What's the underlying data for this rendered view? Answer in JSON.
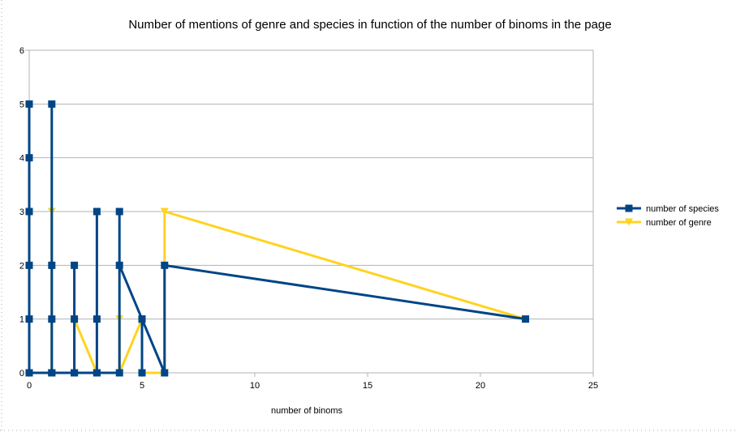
{
  "chart_data": {
    "type": "line",
    "title": "Number of mentions of genre and species in function of the number of binoms in the page",
    "xlabel": "number of binoms",
    "ylabel": "",
    "xlim": [
      0,
      25
    ],
    "ylim": [
      0,
      6
    ],
    "x_ticks": [
      "0",
      "5",
      "10",
      "15",
      "20",
      "25"
    ],
    "y_ticks": [
      "0",
      "1",
      "2",
      "3",
      "4",
      "5",
      "6"
    ],
    "grid": true,
    "legend_position": "right",
    "series": [
      {
        "name": "number of species",
        "color": "#004586",
        "marker": "square",
        "points": [
          [
            0,
            5
          ],
          [
            0,
            4
          ],
          [
            0,
            3
          ],
          [
            0,
            2
          ],
          [
            0,
            1
          ],
          [
            0,
            0
          ],
          [
            1,
            0
          ],
          [
            1,
            5
          ],
          [
            1,
            2
          ],
          [
            1,
            1
          ],
          [
            1,
            0
          ],
          [
            2,
            0
          ],
          [
            2,
            2
          ],
          [
            2,
            1
          ],
          [
            2,
            0
          ],
          [
            3,
            0
          ],
          [
            3,
            3
          ],
          [
            3,
            1
          ],
          [
            3,
            0
          ],
          [
            4,
            0
          ],
          [
            4,
            3
          ],
          [
            4,
            2
          ],
          [
            5,
            1
          ],
          [
            5,
            0
          ],
          [
            5,
            1
          ],
          [
            6,
            0
          ],
          [
            6,
            2
          ],
          [
            22,
            1
          ]
        ]
      },
      {
        "name": "number of genre",
        "color": "#ffd320",
        "marker": "triangle-down",
        "points": [
          [
            0,
            0
          ],
          [
            0,
            0
          ],
          [
            0,
            0
          ],
          [
            0,
            1
          ],
          [
            0,
            0
          ],
          [
            0,
            0
          ],
          [
            1,
            0
          ],
          [
            1,
            3
          ],
          [
            1,
            0
          ],
          [
            1,
            0
          ],
          [
            1,
            0
          ],
          [
            2,
            0
          ],
          [
            2,
            1
          ],
          [
            2,
            1
          ],
          [
            3,
            0
          ],
          [
            3,
            0
          ],
          [
            3,
            0
          ],
          [
            3,
            0
          ],
          [
            4,
            0
          ],
          [
            4,
            1
          ],
          [
            4,
            0
          ],
          [
            5,
            1
          ],
          [
            5,
            0
          ],
          [
            5,
            0
          ],
          [
            6,
            0
          ],
          [
            6,
            3
          ],
          [
            6,
            3
          ],
          [
            22,
            1
          ]
        ]
      }
    ]
  }
}
